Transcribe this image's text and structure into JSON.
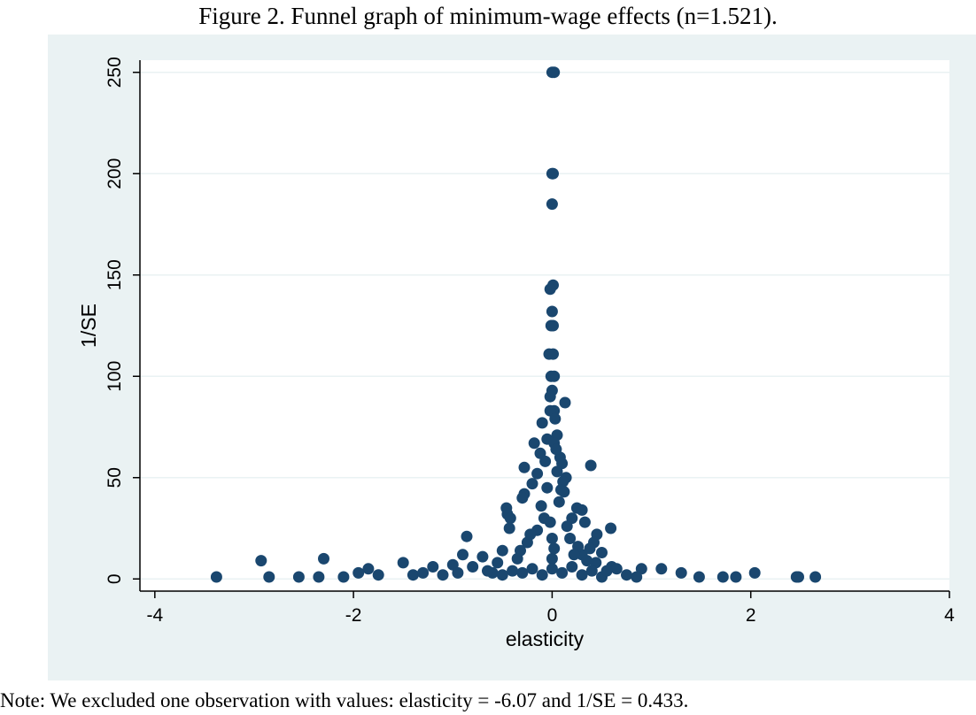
{
  "figure": {
    "caption": "Figure 2. Funnel graph of minimum-wage effects (n=1.521).",
    "note": "Note: We excluded one observation with values: elasticity = -6.07 and 1/SE = 0.433."
  },
  "colors": {
    "panel_background": "#eaf2f3",
    "plot_background": "#ffffff",
    "marker": "#1a476f",
    "gridline": "#eaf2f3",
    "axis": "#000000"
  },
  "chart_data": {
    "type": "scatter",
    "title": "",
    "xlabel": "elasticity",
    "ylabel": "1/SE",
    "xlim": [
      -4.15,
      4.0
    ],
    "ylim": [
      -6,
      256
    ],
    "xticks": [
      -4,
      -2,
      0,
      2,
      4
    ],
    "xtick_labels": [
      "-4",
      "-2",
      "0",
      "2",
      "4"
    ],
    "yticks": [
      0,
      50,
      100,
      150,
      200,
      250
    ],
    "ytick_labels": [
      "0",
      "50",
      "100",
      "150",
      "200",
      "250"
    ],
    "grid": "horizontal",
    "legend": "none",
    "series": [
      {
        "name": "estimates",
        "points": [
          [
            0.0,
            250
          ],
          [
            0.02,
            250
          ],
          [
            0.0,
            200
          ],
          [
            0.01,
            200
          ],
          [
            0.0,
            185
          ],
          [
            0.01,
            145
          ],
          [
            -0.02,
            143
          ],
          [
            0.0,
            132
          ],
          [
            -0.01,
            125
          ],
          [
            0.01,
            125
          ],
          [
            -0.03,
            111
          ],
          [
            0.01,
            111
          ],
          [
            -0.01,
            100
          ],
          [
            0.02,
            100
          ],
          [
            0.0,
            93
          ],
          [
            -0.02,
            90
          ],
          [
            0.13,
            87
          ],
          [
            0.02,
            83
          ],
          [
            -0.02,
            83
          ],
          [
            0.03,
            79
          ],
          [
            -0.1,
            77
          ],
          [
            0.05,
            71
          ],
          [
            -0.05,
            69
          ],
          [
            0.02,
            67
          ],
          [
            -0.18,
            67
          ],
          [
            -0.12,
            62
          ],
          [
            0.08,
            60
          ],
          [
            0.39,
            56
          ],
          [
            -0.28,
            55
          ],
          [
            0.1,
            57
          ],
          [
            0.05,
            53
          ],
          [
            -0.15,
            52
          ],
          [
            0.14,
            50
          ],
          [
            0.11,
            48
          ],
          [
            -0.2,
            47
          ],
          [
            0.12,
            43
          ],
          [
            -0.28,
            42
          ],
          [
            -0.3,
            40
          ],
          [
            0.25,
            35
          ],
          [
            -0.46,
            35
          ],
          [
            -0.45,
            32
          ],
          [
            0.3,
            34
          ],
          [
            -0.42,
            30
          ],
          [
            0.2,
            30
          ],
          [
            0.33,
            28
          ],
          [
            -0.43,
            25
          ],
          [
            0.59,
            25
          ],
          [
            -0.86,
            21
          ],
          [
            0.45,
            22
          ],
          [
            0.42,
            18
          ],
          [
            0.38,
            15
          ],
          [
            -0.5,
            14
          ],
          [
            0.5,
            13
          ],
          [
            -0.9,
            12
          ],
          [
            -0.7,
            11
          ],
          [
            0.3,
            12
          ],
          [
            -2.3,
            10
          ],
          [
            -2.93,
            9
          ],
          [
            -1.5,
            8
          ],
          [
            0.44,
            8
          ],
          [
            0.6,
            6
          ],
          [
            0.65,
            5
          ],
          [
            0.9,
            5
          ],
          [
            1.1,
            5
          ],
          [
            -1.2,
            6
          ],
          [
            -1.0,
            7
          ],
          [
            -0.8,
            6
          ],
          [
            -1.85,
            5
          ],
          [
            -1.95,
            3
          ],
          [
            -1.75,
            2
          ],
          [
            -2.1,
            1
          ],
          [
            -2.35,
            1
          ],
          [
            -2.55,
            1
          ],
          [
            -2.85,
            1
          ],
          [
            -3.38,
            1
          ],
          [
            1.3,
            3
          ],
          [
            1.48,
            1
          ],
          [
            1.72,
            1
          ],
          [
            1.85,
            1
          ],
          [
            2.04,
            3
          ],
          [
            2.46,
            1
          ],
          [
            2.48,
            1
          ],
          [
            2.65,
            1
          ],
          [
            0.75,
            2
          ],
          [
            0.85,
            1
          ],
          [
            -0.6,
            3
          ],
          [
            -0.5,
            2
          ],
          [
            -0.4,
            4
          ],
          [
            -0.3,
            3
          ],
          [
            -0.2,
            5
          ],
          [
            -0.1,
            2
          ],
          [
            0.1,
            3
          ],
          [
            0.2,
            6
          ],
          [
            0.3,
            2
          ],
          [
            0.4,
            4
          ],
          [
            0.5,
            1
          ],
          [
            -1.4,
            2
          ],
          [
            -1.3,
            3
          ],
          [
            -1.1,
            2
          ],
          [
            -0.95,
            3
          ],
          [
            -0.35,
            10
          ],
          [
            -0.25,
            18
          ],
          [
            -0.15,
            24
          ],
          [
            -0.08,
            30
          ],
          [
            0.07,
            38
          ],
          [
            0.18,
            20
          ],
          [
            0.26,
            16
          ],
          [
            -0.55,
            8
          ],
          [
            0.55,
            4
          ],
          [
            -0.65,
            4
          ],
          [
            -0.05,
            45
          ],
          [
            0.04,
            64
          ],
          [
            -0.07,
            58
          ],
          [
            0.09,
            44
          ],
          [
            -0.11,
            36
          ],
          [
            0.15,
            26
          ],
          [
            -0.22,
            22
          ],
          [
            0.22,
            12
          ],
          [
            -0.32,
            14
          ],
          [
            0.35,
            9
          ],
          [
            0.0,
            20
          ],
          [
            0.0,
            10
          ],
          [
            0.0,
            5
          ],
          [
            0.02,
            15
          ],
          [
            -0.02,
            28
          ]
        ]
      }
    ]
  }
}
